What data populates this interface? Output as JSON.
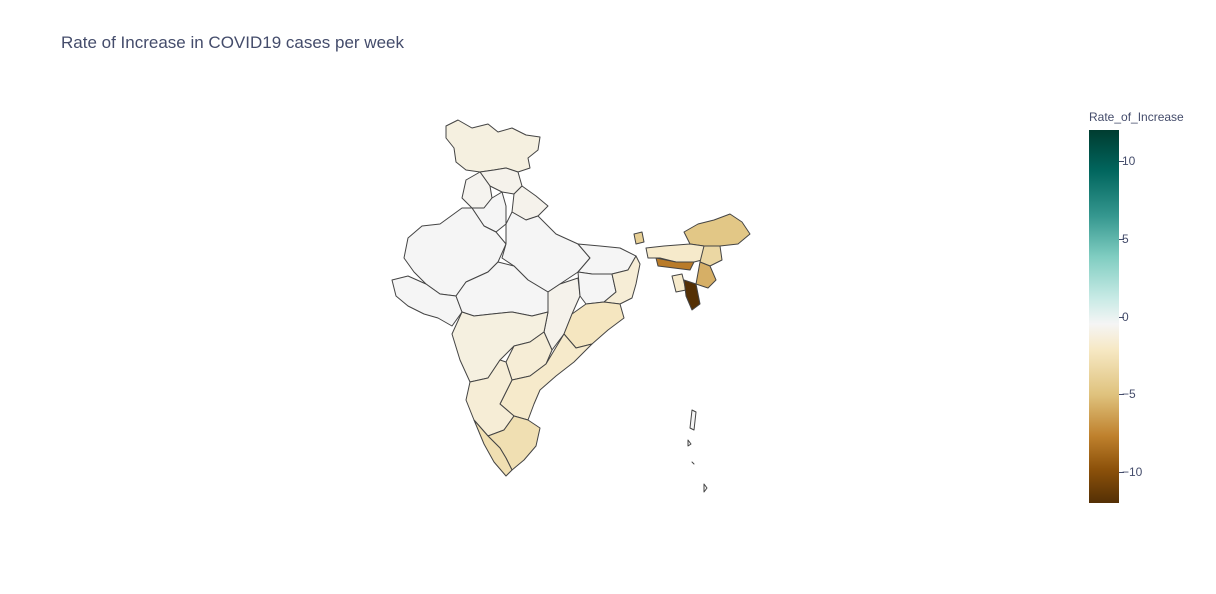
{
  "title": "Rate of Increase in COVID19 cases per week",
  "colorbar": {
    "title": "Rate_of_Increase",
    "range": [
      -12,
      12
    ],
    "ticks": [
      {
        "value": 10,
        "label": "10"
      },
      {
        "value": 5,
        "label": "5"
      },
      {
        "value": 0,
        "label": "0"
      },
      {
        "value": -5,
        "label": "−5"
      },
      {
        "value": -10,
        "label": "−10"
      }
    ],
    "colorscale": "BrBG"
  },
  "chart_data": {
    "type": "choropleth",
    "title": "Rate of Increase in COVID19 cases per week",
    "locations_value": {
      "Jammu & Kashmir": -1,
      "Himachal Pradesh": -0.5,
      "Punjab": -0.3,
      "Uttarakhand": -0.5,
      "Haryana": 0,
      "Rajasthan": 0,
      "Uttar Pradesh": 0,
      "Bihar": 0,
      "Gujarat": 0,
      "Madhya Pradesh": 0,
      "Chhattisgarh": -0.5,
      "Jharkhand": 0,
      "West Bengal": -1.5,
      "Odisha": -2.5,
      "Maharashtra": -1,
      "Telangana": -1.5,
      "Andhra Pradesh": -2,
      "Karnataka": -1.5,
      "Tamil Nadu": -3,
      "Kerala": -3,
      "Sikkim": -4,
      "Arunachal Pradesh": -4.5,
      "Assam": -2,
      "Nagaland": -3.5,
      "Manipur": -5.5,
      "Meghalaya": -7.5,
      "Tripura": -2,
      "Mizoram": -12,
      "Andaman & Nicobar": 0
    }
  }
}
